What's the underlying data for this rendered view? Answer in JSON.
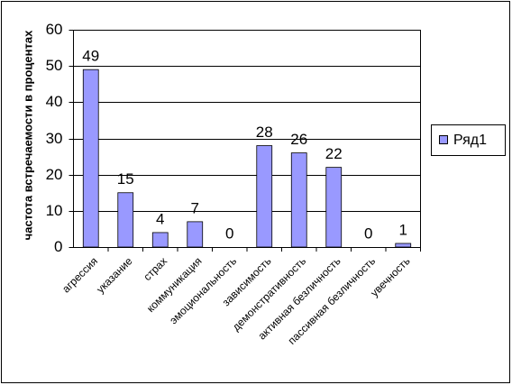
{
  "chart_data": {
    "type": "bar",
    "y_label": "частота встречаемости в процентах",
    "categories": [
      "агрессия",
      "указание",
      "страх",
      "коммуникация",
      "эмоциональность",
      "зависимость",
      "демонстративность",
      "активная безличность",
      "пассивная безличность",
      "увечность"
    ],
    "series": [
      {
        "name": "Ряд1",
        "color": "#9999ff",
        "values": [
          49,
          15,
          4,
          7,
          0,
          28,
          26,
          22,
          0,
          1
        ]
      }
    ],
    "ylim": [
      0,
      60
    ],
    "yticks": [
      0,
      10,
      20,
      30,
      40,
      50,
      60
    ],
    "grid": true,
    "legend": "right"
  }
}
